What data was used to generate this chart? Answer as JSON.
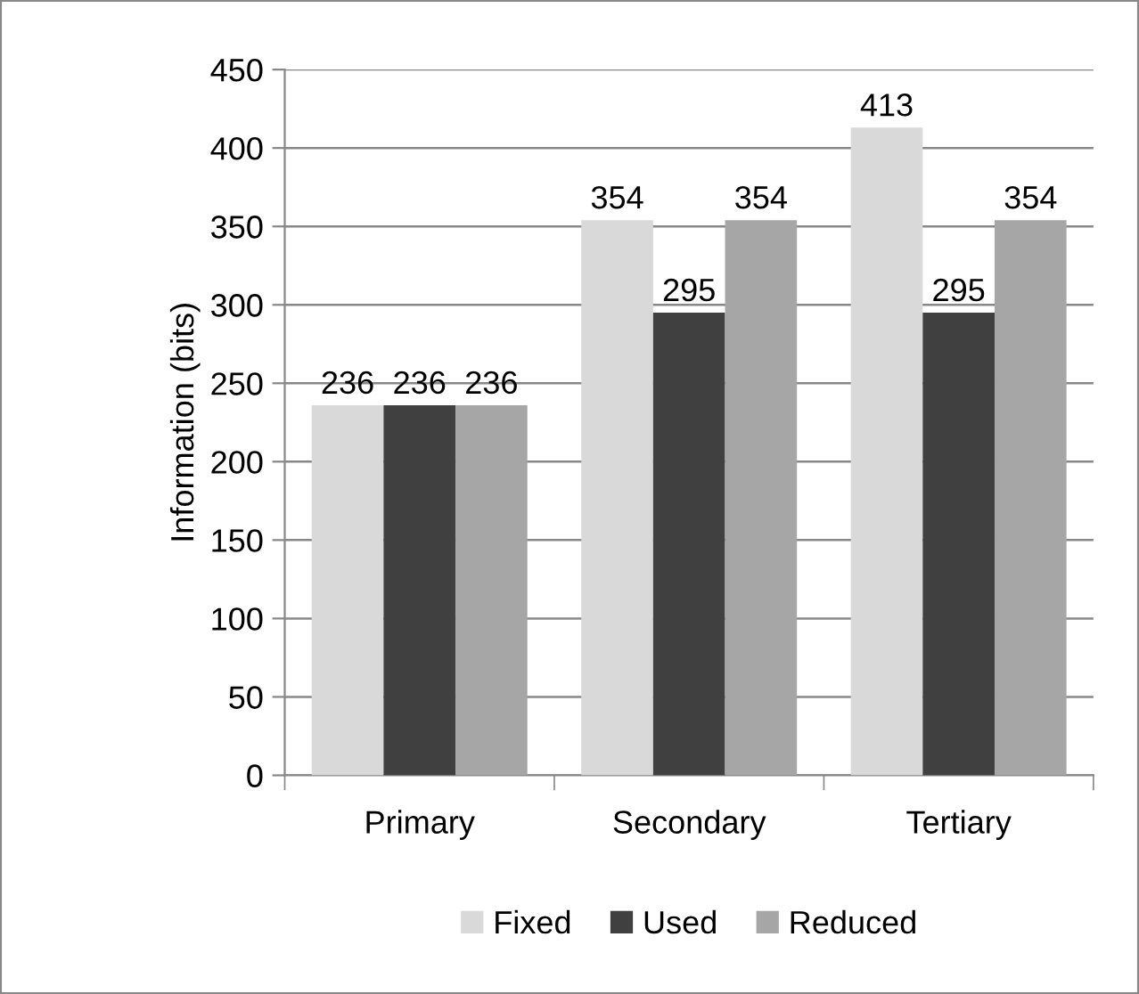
{
  "chart_data": {
    "type": "bar",
    "ylabel": "Information (bits)",
    "categories": [
      "Primary",
      "Secondary",
      "Tertiary"
    ],
    "series": [
      {
        "name": "Fixed",
        "color": "#d9d9d9",
        "values": [
          236,
          354,
          413
        ]
      },
      {
        "name": "Used",
        "color": "#404040",
        "values": [
          236,
          295,
          295
        ]
      },
      {
        "name": "Reduced",
        "color": "#a6a6a6",
        "values": [
          236,
          354,
          354
        ]
      }
    ],
    "ylim": [
      0,
      450
    ],
    "yticks": [
      0,
      50,
      100,
      150,
      200,
      250,
      300,
      350,
      400,
      450
    ],
    "grid": "y",
    "legend": "bottom",
    "data_labels": true
  }
}
